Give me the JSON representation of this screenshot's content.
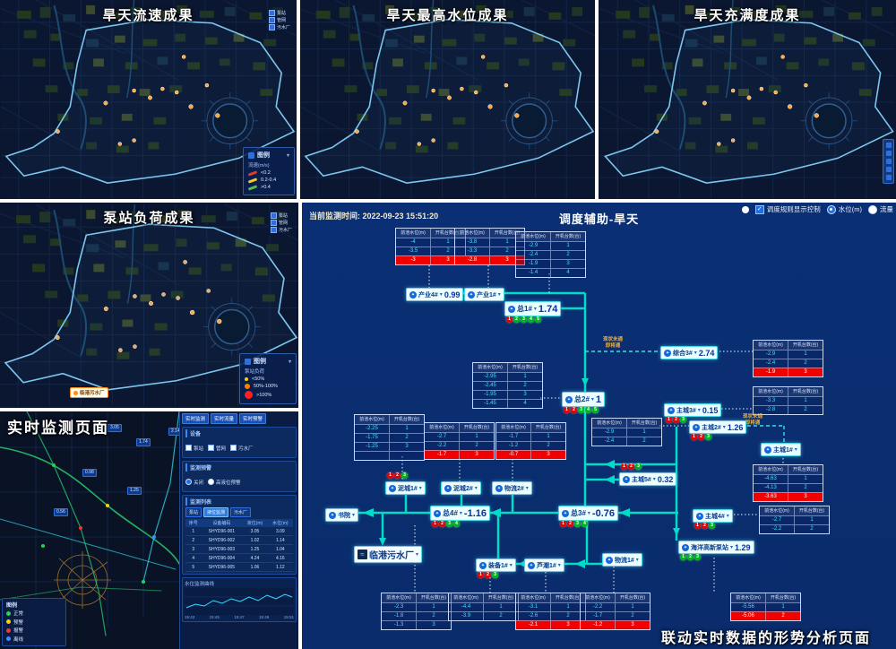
{
  "maps": {
    "velocity": {
      "title": "旱天流速成果",
      "mini_legend": [
        "泵站",
        "管网",
        "污水厂"
      ],
      "legend": {
        "title": "图例",
        "subtitle": "流速(m/s)",
        "items": [
          {
            "label": "<0.2",
            "color": "#e23b2e"
          },
          {
            "label": "0.2-0.4",
            "color": "#f0c830"
          },
          {
            "label": ">0.4",
            "color": "#51c04a"
          }
        ]
      }
    },
    "max_level": {
      "title": "旱天最高水位成果"
    },
    "fullness": {
      "title": "旱天充满度成果"
    },
    "pump_load": {
      "title": "泵站负荷成果",
      "mini_legend": [
        "泵站",
        "管网",
        "污水厂"
      ],
      "plant_label": "临港污水厂",
      "legend": {
        "title": "图例",
        "subtitle": "泵站负荷",
        "items": [
          {
            "label": "<50%",
            "color": "#ffd000",
            "size": 4
          },
          {
            "label": "50%-100%",
            "color": "#ff8000",
            "size": 6
          },
          {
            "label": ">100%",
            "color": "#ff2020",
            "size": 9
          }
        ]
      }
    },
    "realtime": {
      "title": "实时监测页面",
      "tabs": [
        "实时监测",
        "实时流量",
        "实时预警"
      ],
      "sections": {
        "device": {
          "title": "设备",
          "checks": [
            "泵站",
            "管网",
            "污水厂"
          ]
        },
        "warning": {
          "title": "监测预警",
          "radios": [
            "关闭",
            "高液位预警"
          ]
        },
        "list": {
          "title": "监测列表",
          "buttons": [
            "泵站",
            "液位监测",
            "污水厂"
          ],
          "table": {
            "header": [
              "序号",
              "设备编码",
              "液位(m)",
              "水位(m)"
            ],
            "rows": [
              [
                "1",
                "SHYD96-001",
                "3.05",
                "3.09"
              ],
              [
                "2",
                "SHYD96-002",
                "1.02",
                "1.14"
              ],
              [
                "3",
                "SHYD96-003",
                "1.25",
                "1.04"
              ],
              [
                "4",
                "SHYD96-004",
                "4.24",
                "4.16"
              ],
              [
                "5",
                "SHYD96-005",
                "1.06",
                "1.12"
              ]
            ]
          }
        }
      },
      "chart": {
        "title": "水位监测曲线",
        "x_ticks": [
          "15:43",
          "15:45",
          "15:47",
          "15:49",
          "15:51"
        ]
      },
      "legend": {
        "title": "图例",
        "items": [
          {
            "label": "正常",
            "color": "#27d34f"
          },
          {
            "label": "预警",
            "color": "#ffd000"
          },
          {
            "label": "报警",
            "color": "#ff3030"
          },
          {
            "label": "离线",
            "color": "#3f8cff"
          }
        ]
      },
      "chips": [
        "3.05",
        "1.74",
        "2.14",
        "0.98",
        "1.25",
        "0.56"
      ]
    }
  },
  "schematic": {
    "time_label": "当前监测时间:",
    "time_value": "2022-09-23 15:51:20",
    "title": "调度辅助-旱天",
    "controls": {
      "rule": "调度规则显示控制",
      "level": "水位(m)",
      "flow": "流量"
    },
    "table_header": [
      "前池水位(m)",
      "开机台数(台)"
    ],
    "offline1": "现状未通",
    "offline2": "即将通",
    "caption": "联动实时数据的形势分析页面",
    "nodes": [
      {
        "id": "cy4",
        "label": "产业4#",
        "value": "0.99",
        "dots": ""
      },
      {
        "id": "cy1",
        "label": "产业1#",
        "value": "",
        "dots": ""
      },
      {
        "id": "z1",
        "label": "总1#",
        "value": "1.74",
        "dots": "rgggg"
      },
      {
        "id": "z2",
        "label": "总2#",
        "value": "1",
        "dots": "rrggg"
      },
      {
        "id": "zh3",
        "label": "综合3#",
        "value": "2.74",
        "dots": ""
      },
      {
        "id": "zc3",
        "label": "主城3#",
        "value": "0.15",
        "dots": "rrg"
      },
      {
        "id": "zc2",
        "label": "主城2#",
        "value": "1.26",
        "dots": "rrg"
      },
      {
        "id": "zc1",
        "label": "主城1#",
        "value": "",
        "dots": ""
      },
      {
        "id": "zc5",
        "label": "主城5#",
        "value": "0.32",
        "dots": "rrg"
      },
      {
        "id": "zc4",
        "label": "主城4#",
        "value": "",
        "dots": "rrg"
      },
      {
        "id": "hy",
        "label": "海洋高新泵站",
        "value": "1.29",
        "dots": "ggg"
      },
      {
        "id": "z3",
        "label": "总3#",
        "value": "-0.76",
        "dots": "rrgg"
      },
      {
        "id": "z4",
        "label": "总4#",
        "value": "-1.16",
        "dots": "rrgg"
      },
      {
        "id": "sy",
        "label": "书院",
        "value": "",
        "dots": ""
      },
      {
        "id": "nc1",
        "label": "泥城1#",
        "value": "",
        "dots": "rrg"
      },
      {
        "id": "nc2",
        "label": "泥城2#",
        "value": "",
        "dots": ""
      },
      {
        "id": "wl2",
        "label": "物流2#",
        "value": "",
        "dots": ""
      },
      {
        "id": "zb1",
        "label": "装备1#",
        "value": "",
        "dots": "rrg"
      },
      {
        "id": "lc1",
        "label": "芦潮1#",
        "value": "",
        "dots": ""
      },
      {
        "id": "wl1",
        "label": "物流1#",
        "value": "",
        "dots": ""
      },
      {
        "id": "plant",
        "label": "临港污水厂",
        "value": "",
        "dots": ""
      }
    ],
    "tables": [
      {
        "id": "t_cy4",
        "rows": [
          [
            "-4",
            "1"
          ],
          [
            "-3.5",
            "2"
          ],
          [
            "-3",
            "3"
          ]
        ],
        "red": [
          2
        ]
      },
      {
        "id": "t_cy1",
        "rows": [
          [
            "-3.8",
            "1"
          ],
          [
            "-3.3",
            "2"
          ],
          [
            "-2.8",
            "3"
          ]
        ],
        "red": [
          2
        ]
      },
      {
        "id": "t_z1",
        "rows": [
          [
            "-2.9",
            "1"
          ],
          [
            "-2.4",
            "2"
          ],
          [
            "-1.9",
            "3"
          ],
          [
            "-1.4",
            "4"
          ]
        ],
        "red": []
      },
      {
        "id": "t_z2",
        "rows": [
          [
            "-2.95",
            "1"
          ],
          [
            "-2.45",
            "2"
          ],
          [
            "-1.95",
            "3"
          ],
          [
            "-1.45",
            "4"
          ]
        ],
        "red": []
      },
      {
        "id": "t_nc1",
        "rows": [
          [
            "-2.25",
            "1"
          ],
          [
            "-1.75",
            "2"
          ],
          [
            "-1.25",
            "3"
          ],
          [
            "",
            ""
          ]
        ],
        "red": []
      },
      {
        "id": "t_nc2",
        "rows": [
          [
            "-2.7",
            "1"
          ],
          [
            "-2.2",
            "2"
          ],
          [
            "-1.7",
            "3"
          ]
        ],
        "red": [
          2
        ]
      },
      {
        "id": "t_wl2",
        "rows": [
          [
            "-1.7",
            "1"
          ],
          [
            "-1.2",
            "2"
          ],
          [
            "-0.7",
            "3"
          ]
        ],
        "red": [
          2
        ]
      },
      {
        "id": "t_zh3",
        "rows": [
          [
            "-2.9",
            "1"
          ],
          [
            "-2.4",
            "2"
          ],
          [
            "-1.9",
            "3"
          ]
        ],
        "red": [
          2
        ]
      },
      {
        "id": "t_zc3",
        "rows": [
          [
            "-3.3",
            "1"
          ],
          [
            "-2.8",
            "2"
          ]
        ],
        "red": []
      },
      {
        "id": "t_zc2",
        "rows": [
          [
            "-2.9",
            "1"
          ],
          [
            "-2.4",
            "2"
          ]
        ],
        "red": []
      },
      {
        "id": "t_zc1",
        "rows": [
          [
            "-4.63",
            "1"
          ],
          [
            "-4.13",
            "2"
          ],
          [
            "-3.63",
            "3"
          ]
        ],
        "red": [
          2
        ]
      },
      {
        "id": "t_zc4",
        "rows": [
          [
            "-2.7",
            "1"
          ],
          [
            "-2.2",
            "2"
          ]
        ],
        "red": []
      },
      {
        "id": "t_hy",
        "rows": [
          [
            "-5.56",
            "1"
          ],
          [
            "-5.06",
            "2"
          ]
        ],
        "red": [
          1
        ]
      },
      {
        "id": "t_z4b",
        "rows": [
          [
            "-2.3",
            "1"
          ],
          [
            "-1.8",
            "2"
          ],
          [
            "-1.3",
            "3"
          ]
        ],
        "red": []
      },
      {
        "id": "t_zb1",
        "rows": [
          [
            "-4.4",
            "1"
          ],
          [
            "-3.9",
            "2"
          ]
        ],
        "red": []
      },
      {
        "id": "t_lc1",
        "rows": [
          [
            "-3.1",
            "1"
          ],
          [
            "-2.6",
            "2"
          ],
          [
            "-2.1",
            "3"
          ]
        ],
        "red": [
          2
        ]
      },
      {
        "id": "t_wl1",
        "rows": [
          [
            "-2.2",
            "1"
          ],
          [
            "-1.7",
            "2"
          ],
          [
            "-1.2",
            "3"
          ]
        ],
        "red": [
          2
        ]
      }
    ]
  }
}
